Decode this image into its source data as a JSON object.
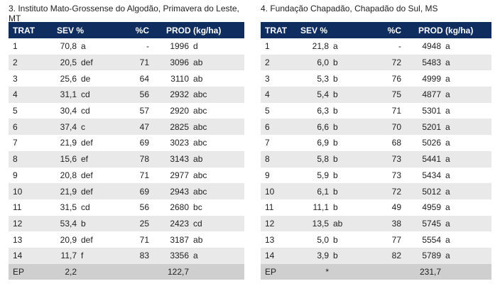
{
  "tables": [
    {
      "title": "3. Instituto Mato-Grossense do Algodão, Primavera do Leste, MT",
      "headers": [
        "TRAT",
        "SEV %",
        "%C",
        "PROD (kg/ha)"
      ],
      "rows": [
        {
          "trat": "1",
          "sev": "70,8",
          "sev_letter": "a",
          "c": "-",
          "prod": "1996",
          "prod_letter": "d"
        },
        {
          "trat": "2",
          "sev": "20,5",
          "sev_letter": "def",
          "c": "71",
          "prod": "3096",
          "prod_letter": "ab"
        },
        {
          "trat": "3",
          "sev": "25,6",
          "sev_letter": "de",
          "c": "64",
          "prod": "3110",
          "prod_letter": "ab"
        },
        {
          "trat": "4",
          "sev": "31,1",
          "sev_letter": "cd",
          "c": "56",
          "prod": "2932",
          "prod_letter": "abc"
        },
        {
          "trat": "5",
          "sev": "30,4",
          "sev_letter": "cd",
          "c": "57",
          "prod": "2920",
          "prod_letter": "abc"
        },
        {
          "trat": "6",
          "sev": "37,4",
          "sev_letter": "c",
          "c": "47",
          "prod": "2825",
          "prod_letter": "abc"
        },
        {
          "trat": "7",
          "sev": "21,9",
          "sev_letter": "def",
          "c": "69",
          "prod": "3023",
          "prod_letter": "abc"
        },
        {
          "trat": "8",
          "sev": "15,6",
          "sev_letter": "ef",
          "c": "78",
          "prod": "3143",
          "prod_letter": "ab"
        },
        {
          "trat": "9",
          "sev": "20,8",
          "sev_letter": "def",
          "c": "71",
          "prod": "2977",
          "prod_letter": "abc"
        },
        {
          "trat": "10",
          "sev": "21,9",
          "sev_letter": "def",
          "c": "69",
          "prod": "2943",
          "prod_letter": "abc"
        },
        {
          "trat": "11",
          "sev": "31,5",
          "sev_letter": "cd",
          "c": "56",
          "prod": "2680",
          "prod_letter": "bc"
        },
        {
          "trat": "12",
          "sev": "53,4",
          "sev_letter": "b",
          "c": "25",
          "prod": "2423",
          "prod_letter": "cd"
        },
        {
          "trat": "13",
          "sev": "20,9",
          "sev_letter": "def",
          "c": "71",
          "prod": "3187",
          "prod_letter": "ab"
        },
        {
          "trat": "14",
          "sev": "11,7",
          "sev_letter": "f",
          "c": "83",
          "prod": "3356",
          "prod_letter": "a"
        }
      ],
      "footer": {
        "label": "EP",
        "sev": "2,2",
        "prod": "122,7"
      }
    },
    {
      "title": "4. Fundação Chapadão, Chapadão do Sul, MS",
      "headers": [
        "TRAT",
        "SEV %",
        "%C",
        "PROD (kg/ha)"
      ],
      "rows": [
        {
          "trat": "1",
          "sev": "21,8",
          "sev_letter": "a",
          "c": "-",
          "prod": "4948",
          "prod_letter": "a"
        },
        {
          "trat": "2",
          "sev": "6,0",
          "sev_letter": "b",
          "c": "72",
          "prod": "5483",
          "prod_letter": "a"
        },
        {
          "trat": "3",
          "sev": "5,3",
          "sev_letter": "b",
          "c": "76",
          "prod": "4999",
          "prod_letter": "a"
        },
        {
          "trat": "4",
          "sev": "5,4",
          "sev_letter": "b",
          "c": "75",
          "prod": "4877",
          "prod_letter": "a"
        },
        {
          "trat": "5",
          "sev": "6,3",
          "sev_letter": "b",
          "c": "71",
          "prod": "5301",
          "prod_letter": "a"
        },
        {
          "trat": "6",
          "sev": "6,6",
          "sev_letter": "b",
          "c": "70",
          "prod": "5201",
          "prod_letter": "a"
        },
        {
          "trat": "7",
          "sev": "6,9",
          "sev_letter": "b",
          "c": "68",
          "prod": "5026",
          "prod_letter": "a"
        },
        {
          "trat": "8",
          "sev": "5,8",
          "sev_letter": "b",
          "c": "73",
          "prod": "5441",
          "prod_letter": "a"
        },
        {
          "trat": "9",
          "sev": "5,9",
          "sev_letter": "b",
          "c": "73",
          "prod": "5434",
          "prod_letter": "a"
        },
        {
          "trat": "10",
          "sev": "6,1",
          "sev_letter": "b",
          "c": "72",
          "prod": "5012",
          "prod_letter": "a"
        },
        {
          "trat": "11",
          "sev": "11,1",
          "sev_letter": "b",
          "c": "49",
          "prod": "4959",
          "prod_letter": "a"
        },
        {
          "trat": "12",
          "sev": "13,5",
          "sev_letter": "ab",
          "c": "38",
          "prod": "5745",
          "prod_letter": "a"
        },
        {
          "trat": "13",
          "sev": "5,0",
          "sev_letter": "b",
          "c": "77",
          "prod": "5554",
          "prod_letter": "a"
        },
        {
          "trat": "14",
          "sev": "3,9",
          "sev_letter": "b",
          "c": "82",
          "prod": "5789",
          "prod_letter": "a"
        }
      ],
      "footer": {
        "label": "EP",
        "sev": "*",
        "prod": "231,7"
      }
    }
  ],
  "colors": {
    "header_bg": "#0f2d5e",
    "row_alt": "#e9e9e9",
    "footer_bg": "#cfcfcf"
  }
}
